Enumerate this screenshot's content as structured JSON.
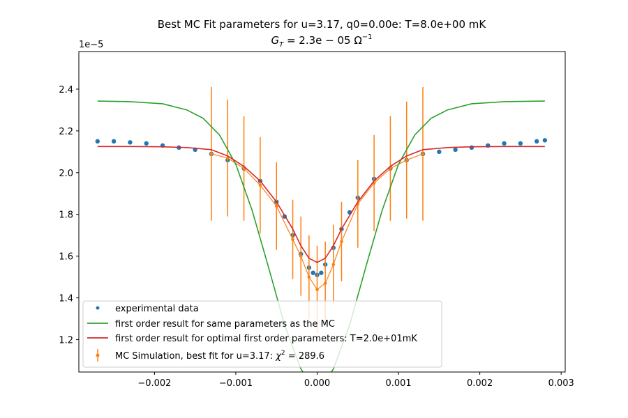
{
  "chart_data": {
    "type": "line",
    "title": "Best MC Fit parameters for u=3.17, q0=0.00e:  T=8.0e+00 mK",
    "subtitle": "G_T = 2.3e−05 Ω⁻¹",
    "subtitle_parts": {
      "g": "G",
      "sub": "T",
      "eq": " = 2.3e − 05 Ω",
      "sup": "−1"
    },
    "y_offset_label": "1e−5",
    "xlim": [
      -0.00293,
      0.00305
    ],
    "ylim": [
      1.045e-05,
      2.58e-05
    ],
    "x_ticks": [
      -0.002,
      -0.001,
      0.0,
      0.001,
      0.002,
      0.003
    ],
    "x_tick_labels": [
      "−0.002",
      "−0.001",
      "0.000",
      "0.001",
      "0.002",
      "0.003"
    ],
    "y_ticks": [
      1.2e-05,
      1.4e-05,
      1.6e-05,
      1.8e-05,
      2e-05,
      2.2e-05,
      2.4e-05
    ],
    "y_tick_labels": [
      "1.2",
      "1.4",
      "1.6",
      "1.8",
      "2.0",
      "2.2",
      "2.4"
    ],
    "grid": false,
    "legend_position": "lower-left",
    "colors": {
      "experimental": "#1f77b4",
      "mc": "#ff7f0e",
      "first_order_same": "#2ca02c",
      "first_order_optimal": "#d62728"
    },
    "series": [
      {
        "name": "experimental data",
        "kind": "scatter",
        "x": [
          -0.0027,
          -0.0025,
          -0.0023,
          -0.0021,
          -0.0019,
          -0.0017,
          -0.0015,
          -0.0013,
          -0.0011,
          -0.0009,
          -0.0007,
          -0.0005,
          -0.0004,
          -0.0003,
          -0.0002,
          -0.0001,
          -5e-05,
          0.0,
          5e-05,
          0.0001,
          0.0002,
          0.0003,
          0.0004,
          0.0005,
          0.0007,
          0.0009,
          0.0011,
          0.0013,
          0.0015,
          0.0017,
          0.0019,
          0.0021,
          0.0023,
          0.0025,
          0.0027,
          0.0028
        ],
        "y": [
          2.15e-05,
          2.15e-05,
          2.145e-05,
          2.14e-05,
          2.13e-05,
          2.12e-05,
          2.11e-05,
          2.09e-05,
          2.06e-05,
          2.02e-05,
          1.96e-05,
          1.86e-05,
          1.79e-05,
          1.7e-05,
          1.61e-05,
          1.545e-05,
          1.52e-05,
          1.51e-05,
          1.52e-05,
          1.56e-05,
          1.64e-05,
          1.73e-05,
          1.81e-05,
          1.88e-05,
          1.97e-05,
          2.02e-05,
          2.06e-05,
          2.09e-05,
          2.1e-05,
          2.11e-05,
          2.12e-05,
          2.13e-05,
          2.14e-05,
          2.14e-05,
          2.15e-05,
          2.155e-05
        ]
      },
      {
        "name": "first order result for same parameters as the MC",
        "kind": "line",
        "x": [
          -0.0027,
          -0.0023,
          -0.0019,
          -0.0016,
          -0.0014,
          -0.0012,
          -0.001,
          -0.0008,
          -0.0006,
          -0.0004,
          -0.0002,
          -0.0001,
          0.0,
          0.0001,
          0.0002,
          0.0004,
          0.0006,
          0.0008,
          0.001,
          0.0012,
          0.0014,
          0.0016,
          0.0019,
          0.0023,
          0.0028
        ],
        "y": [
          2.343e-05,
          2.34e-05,
          2.33e-05,
          2.3e-05,
          2.26e-05,
          2.18e-05,
          2.04e-05,
          1.82e-05,
          1.55e-05,
          1.27e-05,
          1.06e-05,
          1e-05,
          9.8e-06,
          1e-05,
          1.06e-05,
          1.27e-05,
          1.55e-05,
          1.82e-05,
          2.04e-05,
          2.18e-05,
          2.26e-05,
          2.3e-05,
          2.33e-05,
          2.34e-05,
          2.343e-05
        ]
      },
      {
        "name": "first order result for optimal first order parameters: T=2.0e+01mK",
        "kind": "line",
        "x": [
          -0.0027,
          -0.0023,
          -0.0019,
          -0.0016,
          -0.0013,
          -0.0011,
          -0.0009,
          -0.0007,
          -0.0005,
          -0.0003,
          -0.0002,
          -0.0001,
          0.0,
          0.0001,
          0.0002,
          0.0003,
          0.0005,
          0.0007,
          0.0009,
          0.0011,
          0.0013,
          0.0016,
          0.0019,
          0.0023,
          0.0028
        ],
        "y": [
          2.125e-05,
          2.125e-05,
          2.124e-05,
          2.12e-05,
          2.11e-05,
          2.08e-05,
          2.03e-05,
          1.96e-05,
          1.86e-05,
          1.73e-05,
          1.65e-05,
          1.59e-05,
          1.57e-05,
          1.59e-05,
          1.65e-05,
          1.73e-05,
          1.86e-05,
          1.96e-05,
          2.03e-05,
          2.08e-05,
          2.11e-05,
          2.12e-05,
          2.124e-05,
          2.125e-05,
          2.125e-05
        ]
      },
      {
        "name": "MC Simulation, best fit for u=3.17:  χ² = 289.6",
        "legend_parts": {
          "pre": "MC Simulation, best fit for u=3.17:  ",
          "chi": "χ",
          "sup": "2",
          "post": " = 289.6"
        },
        "kind": "errorbar",
        "x": [
          -0.0013,
          -0.0011,
          -0.0009,
          -0.0007,
          -0.0005,
          -0.0003,
          -0.0002,
          -0.0001,
          0.0,
          0.0001,
          0.0002,
          0.0003,
          0.0005,
          0.0007,
          0.0009,
          0.0011,
          0.0013
        ],
        "y": [
          2.09e-05,
          2.07e-05,
          2.02e-05,
          1.94e-05,
          1.84e-05,
          1.68e-05,
          1.6e-05,
          1.5e-05,
          1.44e-05,
          1.47e-05,
          1.56e-05,
          1.67e-05,
          1.85e-05,
          1.95e-05,
          2.02e-05,
          2.06e-05,
          2.09e-05
        ],
        "yerr": [
          3.2e-06,
          2.8e-06,
          2.5e-06,
          2.3e-06,
          2.1e-06,
          1.9e-06,
          1.9e-06,
          2e-06,
          2.1e-06,
          2e-06,
          1.9e-06,
          1.9e-06,
          2.1e-06,
          2.3e-06,
          2.5e-06,
          2.8e-06,
          3.2e-06
        ]
      }
    ]
  }
}
